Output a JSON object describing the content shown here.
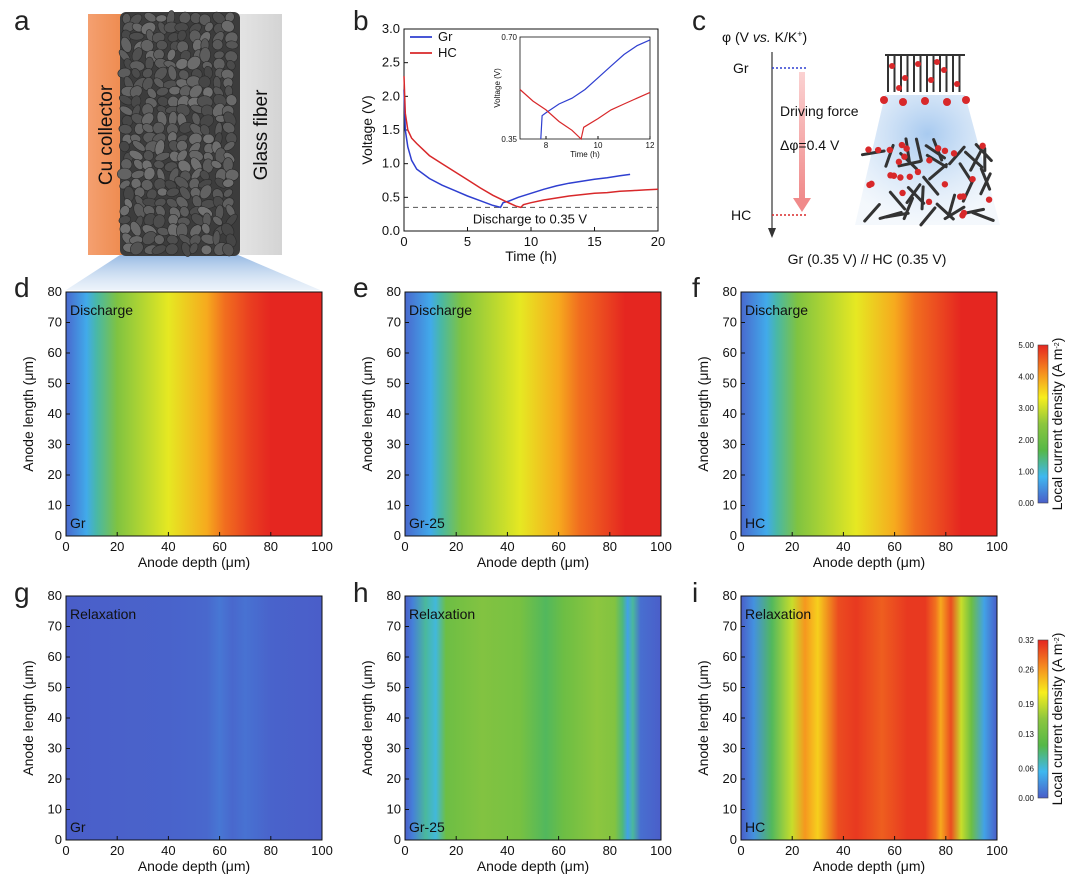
{
  "panel_labels": [
    "a",
    "b",
    "c",
    "d",
    "e",
    "f",
    "g",
    "h",
    "i"
  ],
  "schematic_a": {
    "left_label": "Cu collector",
    "right_label": "Glass fiber",
    "colors": {
      "cu": "#f0945a",
      "glass": "#dcdcdc",
      "particles": "#5a5a5a"
    }
  },
  "potential_c": {
    "axis_label_parts": [
      "φ (V ",
      "vs.",
      " K/K",
      "+",
      ")"
    ],
    "gr_label": "Gr",
    "hc_label": "HC",
    "arrow_label_1": "Driving force",
    "arrow_label_2": "Δφ=0.4 V",
    "bottom_label": "Gr (0.35 V) // HC (0.35 V)",
    "colors": {
      "gr": "#2f3fd0",
      "hc": "#d8282a",
      "arrow": "#f4a0a0",
      "particle": "#d8282a",
      "rod": "#333333"
    }
  },
  "colormap": [
    "#4a5ec9",
    "#3fb8f0",
    "#55b848",
    "#8cc63f",
    "#f7ee1c",
    "#f58a1f",
    "#e52620"
  ],
  "chart_data": [
    {
      "id": "b",
      "type": "line",
      "title": "",
      "xlabel": "Time (h)",
      "ylabel": "Voltage (V)",
      "xlim": [
        0,
        20
      ],
      "ylim": [
        0,
        3.0
      ],
      "xticks": [
        "0",
        "5",
        "10",
        "15",
        "20"
      ],
      "yticks": [
        "0.0",
        "0.5",
        "1.0",
        "1.5",
        "2.0",
        "2.5",
        "3.0"
      ],
      "legend": "top-left",
      "annotation": "Discharge to 0.35 V",
      "reference_line": 0.35,
      "series": [
        {
          "name": "Gr",
          "color": "#2f3fd0",
          "x": [
            0,
            0.1,
            0.3,
            0.6,
            1,
            2,
            3,
            4,
            5,
            6,
            7,
            7.6,
            7.8,
            8.2,
            9,
            10,
            11,
            12,
            13,
            14,
            15,
            16,
            17,
            17.8
          ],
          "y": [
            2.1,
            1.5,
            1.25,
            1.05,
            0.92,
            0.78,
            0.68,
            0.6,
            0.52,
            0.45,
            0.38,
            0.35,
            0.42,
            0.44,
            0.5,
            0.56,
            0.62,
            0.67,
            0.71,
            0.74,
            0.77,
            0.79,
            0.82,
            0.84
          ]
        },
        {
          "name": "HC",
          "color": "#d8282a",
          "x": [
            0,
            0.1,
            0.3,
            0.6,
            1,
            2,
            3,
            4,
            5,
            6,
            7,
            8,
            8.8,
            9.2,
            9.4,
            10,
            11,
            12,
            13,
            14,
            15,
            16,
            17,
            18,
            19,
            20
          ],
          "y": [
            2.3,
            1.75,
            1.5,
            1.38,
            1.3,
            1.12,
            1.0,
            0.88,
            0.76,
            0.64,
            0.53,
            0.44,
            0.37,
            0.35,
            0.39,
            0.42,
            0.46,
            0.49,
            0.52,
            0.54,
            0.56,
            0.57,
            0.59,
            0.6,
            0.61,
            0.62
          ]
        }
      ]
    },
    {
      "id": "b-inset",
      "type": "line",
      "xlabel": "Time (h)",
      "ylabel": "Voltage (V)",
      "xlim": [
        7,
        12
      ],
      "ylim": [
        0.35,
        0.7
      ],
      "xticks": [
        "8",
        "10",
        "12"
      ],
      "yticks": [
        "0.35",
        "0.70"
      ],
      "series": [
        {
          "name": "Gr",
          "color": "#2f3fd0",
          "x": [
            7.8,
            7.85,
            8.0,
            8.5,
            9,
            9.5,
            10,
            10.5,
            11,
            11.5,
            12
          ],
          "y": [
            0.35,
            0.43,
            0.44,
            0.47,
            0.49,
            0.52,
            0.56,
            0.6,
            0.64,
            0.67,
            0.69
          ]
        },
        {
          "name": "HC",
          "color": "#d8282a",
          "x": [
            7.0,
            7.5,
            8.0,
            8.5,
            9.0,
            9.35,
            9.45,
            10,
            10.5,
            11,
            11.5,
            12
          ],
          "y": [
            0.52,
            0.48,
            0.45,
            0.41,
            0.38,
            0.35,
            0.39,
            0.42,
            0.45,
            0.47,
            0.49,
            0.51
          ]
        }
      ]
    },
    {
      "id": "d",
      "type": "heatmap",
      "label": "Discharge",
      "sample": "Gr",
      "text_color": "#111111",
      "xlabel": "Anode depth (μm)",
      "ylabel": "Anode length (μm)",
      "xlim": [
        0,
        100
      ],
      "ylim": [
        0,
        80
      ],
      "xticks": [
        "0",
        "20",
        "40",
        "60",
        "80",
        "100"
      ],
      "yticks": [
        "0",
        "10",
        "20",
        "30",
        "40",
        "50",
        "60",
        "70",
        "80"
      ],
      "profile_depth": [
        0,
        8,
        12,
        20,
        40,
        55,
        62,
        72,
        80,
        100
      ],
      "profile_value": [
        0.1,
        0.7,
        1.2,
        2.3,
        3.2,
        3.9,
        4.4,
        4.8,
        5.0,
        5.0
      ]
    },
    {
      "id": "e",
      "type": "heatmap",
      "label": "Discharge",
      "sample": "Gr-25",
      "text_color": "#111111",
      "xlabel": "Anode depth (μm)",
      "ylabel": "Anode length (μm)",
      "xlim": [
        0,
        100
      ],
      "ylim": [
        0,
        80
      ],
      "xticks": [
        "0",
        "20",
        "40",
        "60",
        "80",
        "100"
      ],
      "yticks": [
        "0",
        "10",
        "20",
        "30",
        "40",
        "50",
        "60",
        "70",
        "80"
      ],
      "profile_depth": [
        0,
        10,
        14,
        22,
        45,
        60,
        68,
        80,
        86,
        100
      ],
      "profile_value": [
        0.1,
        0.7,
        1.2,
        2.3,
        3.2,
        3.9,
        4.4,
        4.8,
        5.0,
        5.0
      ]
    },
    {
      "id": "f",
      "type": "heatmap",
      "label": "Discharge",
      "sample": "HC",
      "text_color": "#111111",
      "xlabel": "Anode depth (μm)",
      "ylabel": "Anode length (μm)",
      "xlim": [
        0,
        100
      ],
      "ylim": [
        0,
        80
      ],
      "xticks": [
        "0",
        "20",
        "40",
        "60",
        "80",
        "100"
      ],
      "yticks": [
        "0",
        "10",
        "20",
        "30",
        "40",
        "50",
        "60",
        "70",
        "80"
      ],
      "profile_depth": [
        0,
        10,
        14,
        22,
        45,
        60,
        68,
        80,
        86,
        100
      ],
      "profile_value": [
        0.1,
        0.7,
        1.2,
        2.3,
        3.2,
        3.9,
        4.4,
        4.8,
        5.0,
        5.0
      ]
    },
    {
      "id": "g",
      "type": "heatmap",
      "label": "Relaxation",
      "sample": "Gr",
      "text_color": "#ffffff",
      "xlabel": "Anode depth (μm)",
      "ylabel": "Anode length (μm)",
      "xlim": [
        0,
        100
      ],
      "ylim": [
        0,
        80
      ],
      "xticks": [
        "0",
        "20",
        "40",
        "60",
        "80",
        "100"
      ],
      "yticks": [
        "0",
        "10",
        "20",
        "30",
        "40",
        "50",
        "60",
        "70",
        "80"
      ],
      "profile_depth": [
        0,
        20,
        40,
        55,
        60,
        65,
        70,
        80,
        100
      ],
      "profile_value": [
        0.0,
        0.002,
        0.003,
        0.006,
        0.015,
        0.006,
        0.012,
        0.003,
        0.0
      ]
    },
    {
      "id": "h",
      "type": "heatmap",
      "label": "Relaxation",
      "sample": "Gr-25",
      "text_color": "#ffffff",
      "xlabel": "Anode depth (μm)",
      "ylabel": "Anode length (μm)",
      "xlim": [
        0,
        100
      ],
      "ylim": [
        0,
        80
      ],
      "xticks": [
        "0",
        "20",
        "40",
        "60",
        "80",
        "100"
      ],
      "yticks": [
        "0",
        "10",
        "20",
        "30",
        "40",
        "50",
        "60",
        "70",
        "80"
      ],
      "profile_depth": [
        0,
        3,
        8,
        12,
        16,
        30,
        45,
        55,
        62,
        75,
        82,
        85,
        87,
        89,
        92,
        100
      ],
      "profile_value": [
        0.0,
        0.02,
        0.08,
        0.06,
        0.13,
        0.15,
        0.14,
        0.1,
        0.13,
        0.16,
        0.15,
        0.09,
        0.04,
        0.08,
        0.01,
        0.0
      ]
    },
    {
      "id": "i",
      "type": "heatmap",
      "label": "Relaxation",
      "sample": "HC",
      "text_color": "#ffffff",
      "xlabel": "Anode depth (μm)",
      "ylabel": "Anode length (μm)",
      "xlim": [
        0,
        100
      ],
      "ylim": [
        0,
        80
      ],
      "xticks": [
        "0",
        "20",
        "40",
        "60",
        "80",
        "100"
      ],
      "yticks": [
        "0",
        "10",
        "20",
        "30",
        "40",
        "50",
        "60",
        "70",
        "80"
      ],
      "profile_depth": [
        0,
        5,
        12,
        20,
        25,
        30,
        38,
        45,
        55,
        65,
        72,
        76,
        78,
        82,
        86,
        90,
        95,
        100
      ],
      "profile_value": [
        0.0,
        0.03,
        0.1,
        0.19,
        0.26,
        0.23,
        0.3,
        0.31,
        0.29,
        0.31,
        0.31,
        0.28,
        0.25,
        0.3,
        0.19,
        0.13,
        0.04,
        0.0
      ]
    },
    {
      "id": "cb1",
      "type": "colorbar",
      "label": "Local current density (A m",
      "label_sup": "-2",
      "label_close": ")",
      "ticks": [
        "0.00",
        "1.00",
        "2.00",
        "3.00",
        "4.00",
        "5.00"
      ],
      "range": [
        0,
        5
      ]
    },
    {
      "id": "cb2",
      "type": "colorbar",
      "label": "Local current density (A m",
      "label_sup": "-2",
      "label_close": ")",
      "ticks": [
        "0.00",
        "0.06",
        "0.13",
        "0.19",
        "0.26",
        "0.32"
      ],
      "range": [
        0,
        0.32
      ]
    }
  ]
}
